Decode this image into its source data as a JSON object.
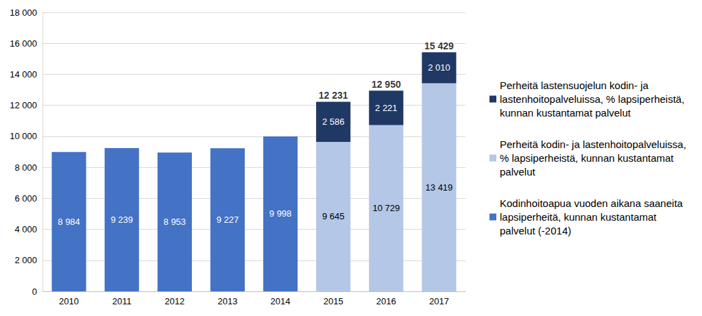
{
  "chart_data": {
    "type": "bar",
    "stacked": true,
    "data_labels": true,
    "grid": true,
    "legend": "right",
    "categories": [
      "2010",
      "2011",
      "2012",
      "2013",
      "2014",
      "2015",
      "2016",
      "2017"
    ],
    "series": [
      {
        "name": "Kodinhoitoapua vuoden aikana saaneita lapsiperheitä, kunnan kustantamat palvelut (-2014)",
        "color": "#4472c4",
        "values": [
          8984,
          9239,
          8953,
          9227,
          9998,
          null,
          null,
          null
        ],
        "value_labels": [
          "8 984",
          "9 239",
          "8 953",
          "9 227",
          "9 998",
          null,
          null,
          null
        ]
      },
      {
        "name": "Perheitä kodin- ja lastenhoitopalveluissa, % lapsiperheistä, kunnan kustantamat palvelut",
        "color": "#b4c7e7",
        "values": [
          null,
          null,
          null,
          null,
          null,
          9645,
          10729,
          13419
        ],
        "value_labels": [
          null,
          null,
          null,
          null,
          null,
          "9 645",
          "10 729",
          "13 419"
        ]
      },
      {
        "name": "Perheitä lastensuojelun kodin- ja lastenhoitopalveluissa, % lapsiperheistä, kunnan kustantamat palvelut",
        "color": "#203864",
        "values": [
          null,
          null,
          null,
          null,
          null,
          2586,
          2221,
          2010
        ],
        "value_labels": [
          null,
          null,
          null,
          null,
          null,
          "2 586",
          "2 221",
          "2 010"
        ]
      }
    ],
    "totals": [
      null,
      null,
      null,
      null,
      null,
      12231,
      12950,
      15429
    ],
    "total_labels": [
      null,
      null,
      null,
      null,
      null,
      "12 231",
      "12 950",
      "15 429"
    ],
    "ylim": [
      0,
      18000
    ],
    "yticks": [
      0,
      {
        "value": 2000,
        "label": "2 000"
      },
      {
        "value": 4000,
        "label": "4 000"
      },
      {
        "value": 6000,
        "label": "6 000"
      },
      {
        "value": 8000,
        "label": "8 000"
      },
      {
        "value": 10000,
        "label": "10 000"
      },
      {
        "value": 12000,
        "label": "12 000"
      },
      {
        "value": 14000,
        "label": "14 000"
      },
      {
        "value": 16000,
        "label": "16 000"
      },
      {
        "value": 18000,
        "label": "18 000"
      }
    ]
  }
}
